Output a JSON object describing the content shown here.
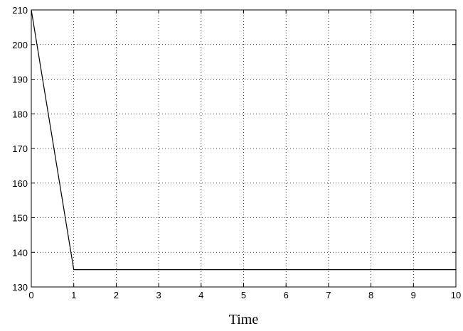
{
  "chart_data": {
    "type": "line",
    "title": "",
    "xlabel": "Time",
    "ylabel": "",
    "xlim": [
      0,
      10
    ],
    "ylim": [
      130,
      210
    ],
    "x_ticks": [
      0,
      1,
      2,
      3,
      4,
      5,
      6,
      7,
      8,
      9,
      10
    ],
    "y_ticks": [
      130,
      140,
      150,
      160,
      170,
      180,
      190,
      200,
      210
    ],
    "grid": true,
    "series": [
      {
        "x": [
          0,
          1,
          2,
          3,
          4,
          5,
          6,
          7,
          8,
          9,
          10
        ],
        "y": [
          210,
          135,
          135,
          135,
          135,
          135,
          135,
          135,
          135,
          135,
          135
        ],
        "color": "#000000"
      }
    ]
  }
}
